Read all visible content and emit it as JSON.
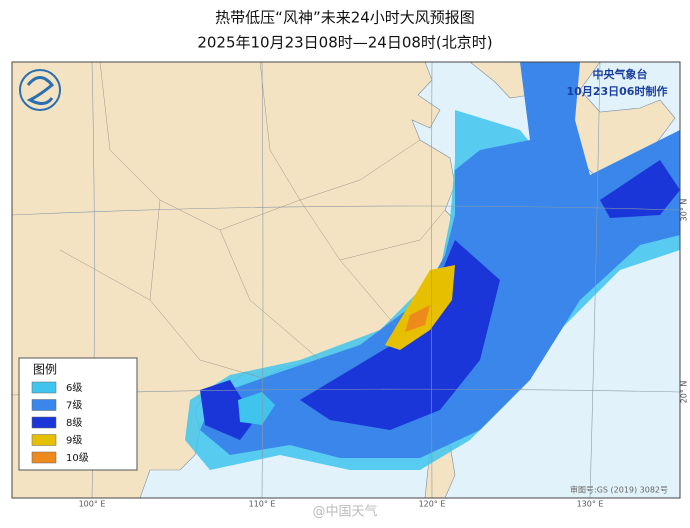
{
  "header": {
    "title": "热带低压“风神”未来24小时大风预报图",
    "subtitle": "2025年10月23日08时—24日08时(北京时)"
  },
  "agency": {
    "name": "中央气象台",
    "issued": "10月23日06时制作"
  },
  "legend": {
    "title": "图例",
    "items": [
      {
        "label": "6级",
        "color": "#3fc4ee"
      },
      {
        "label": "7级",
        "color": "#3a86ea"
      },
      {
        "label": "8级",
        "color": "#1a35d8"
      },
      {
        "label": "9级",
        "color": "#e6c000"
      },
      {
        "label": "10级",
        "color": "#ee8a1c"
      }
    ]
  },
  "axes": {
    "longitudes": [
      "100° E",
      "110° E",
      "120° E",
      "130° E"
    ],
    "latitudes": [
      "30° N",
      "20° N"
    ]
  },
  "footer": {
    "map_approval": "审图号:GS (2019) 3082号",
    "watermark": "@中国天气"
  }
}
